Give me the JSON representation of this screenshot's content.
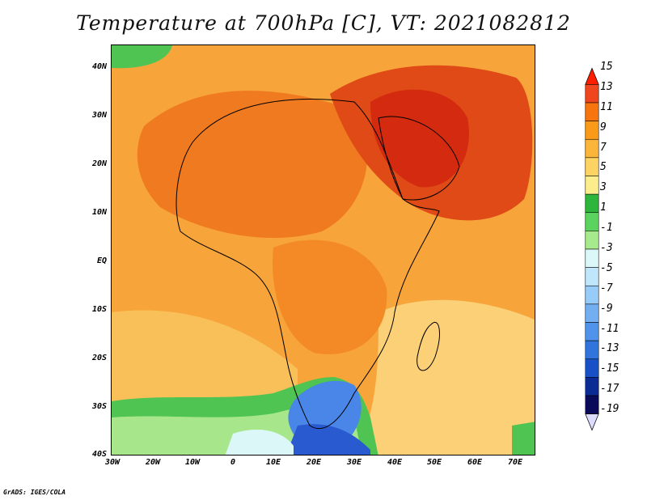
{
  "title": "Temperature at 700hPa [C], VT: 2021082812",
  "credit": "GrADS: IGES/COLA",
  "lat_ticks": [
    "40N",
    "30N",
    "20N",
    "10N",
    "EQ",
    "10S",
    "20S",
    "30S",
    "40S"
  ],
  "lon_ticks": [
    "30W",
    "20W",
    "10W",
    "0",
    "10E",
    "20E",
    "30E",
    "40E",
    "50E",
    "60E",
    "70E"
  ],
  "legend": {
    "labels": [
      "15",
      "13",
      "11",
      "9",
      "7",
      "5",
      "3",
      "1",
      "-1",
      "-3",
      "-5",
      "-7",
      "-9",
      "-11",
      "-13",
      "-15",
      "-17",
      "-19"
    ],
    "colors": [
      "#ff1e00",
      "#f0461e",
      "#f7750f",
      "#f99b18",
      "#fbb53a",
      "#fdd363",
      "#fbed8c",
      "#2db53c",
      "#5ad35f",
      "#a6ea8d",
      "#dcf7f7",
      "#bfe6fa",
      "#97ccf8",
      "#73aff0",
      "#4f94ea",
      "#3174dc",
      "#1850c8",
      "#0a2a94",
      "#0a0a5a",
      "#dcdcff"
    ]
  },
  "colors": {
    "warmest": "#d42a10",
    "hot": "#e8501a",
    "warm": "#f27a22",
    "mild": "#f5962a",
    "cool": "#f8b244",
    "pale": "#fbd077",
    "green": "#4fc453",
    "lightgreen": "#a8e68c",
    "blue": "#4a86e8",
    "darkblue": "#2a5ad0"
  }
}
